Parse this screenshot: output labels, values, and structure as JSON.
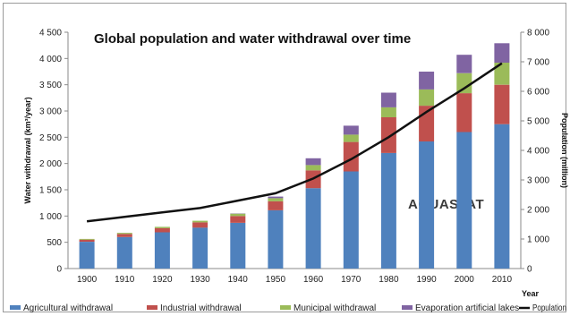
{
  "chart_data": {
    "type": "bar",
    "stacked": true,
    "title": "Global population and water withdrawal over time",
    "watermark": "AQUASTAT",
    "xlabel": "Year",
    "ylabel": "Water withdrawal (km³/year)",
    "y2label": "Population (million)",
    "ylim": [
      0,
      4500
    ],
    "y2lim": [
      0,
      8000
    ],
    "yticks": [
      "0",
      "500",
      "1 000",
      "1 500",
      "2 000",
      "2 500",
      "3 000",
      "3 500",
      "4 000",
      "4 500"
    ],
    "y2ticks": [
      "0",
      "1 000",
      "2 000",
      "3 000",
      "4 000",
      "5 000",
      "6 000",
      "7 000",
      "8 000"
    ],
    "grid": false,
    "legend_position": "bottom",
    "categories": [
      "1900",
      "1910",
      "1920",
      "1930",
      "1940",
      "1950",
      "1960",
      "1970",
      "1980",
      "1990",
      "2000",
      "2010"
    ],
    "series": [
      {
        "name": "Agricultural withdrawal",
        "color": "#4f81bd",
        "values": [
          510,
          600,
          690,
          780,
          870,
          1110,
          1530,
          1850,
          2200,
          2420,
          2600,
          2750
        ]
      },
      {
        "name": "Industrial withdrawal",
        "color": "#c0504d",
        "values": [
          40,
          60,
          80,
          100,
          130,
          170,
          340,
          560,
          680,
          680,
          740,
          750
        ]
      },
      {
        "name": "Municipal withdrawal",
        "color": "#9bbb59",
        "values": [
          15,
          20,
          25,
          30,
          45,
          60,
          100,
          140,
          190,
          310,
          380,
          420
        ]
      },
      {
        "name": "Evaporation artificial lakes",
        "color": "#8064a2",
        "values": [
          0,
          0,
          0,
          0,
          5,
          30,
          130,
          170,
          280,
          340,
          350,
          370
        ]
      }
    ],
    "line_series": {
      "name": "Population",
      "color": "#111111",
      "axis": "secondary",
      "values": [
        1600,
        1750,
        1900,
        2050,
        2300,
        2550,
        3050,
        3700,
        4450,
        5300,
        6100,
        6950
      ]
    },
    "legend": [
      "Agricultural withdrawal",
      "Industrial withdrawal",
      "Municipal withdrawal",
      "Evaporation artificial lakes",
      "Population"
    ]
  }
}
